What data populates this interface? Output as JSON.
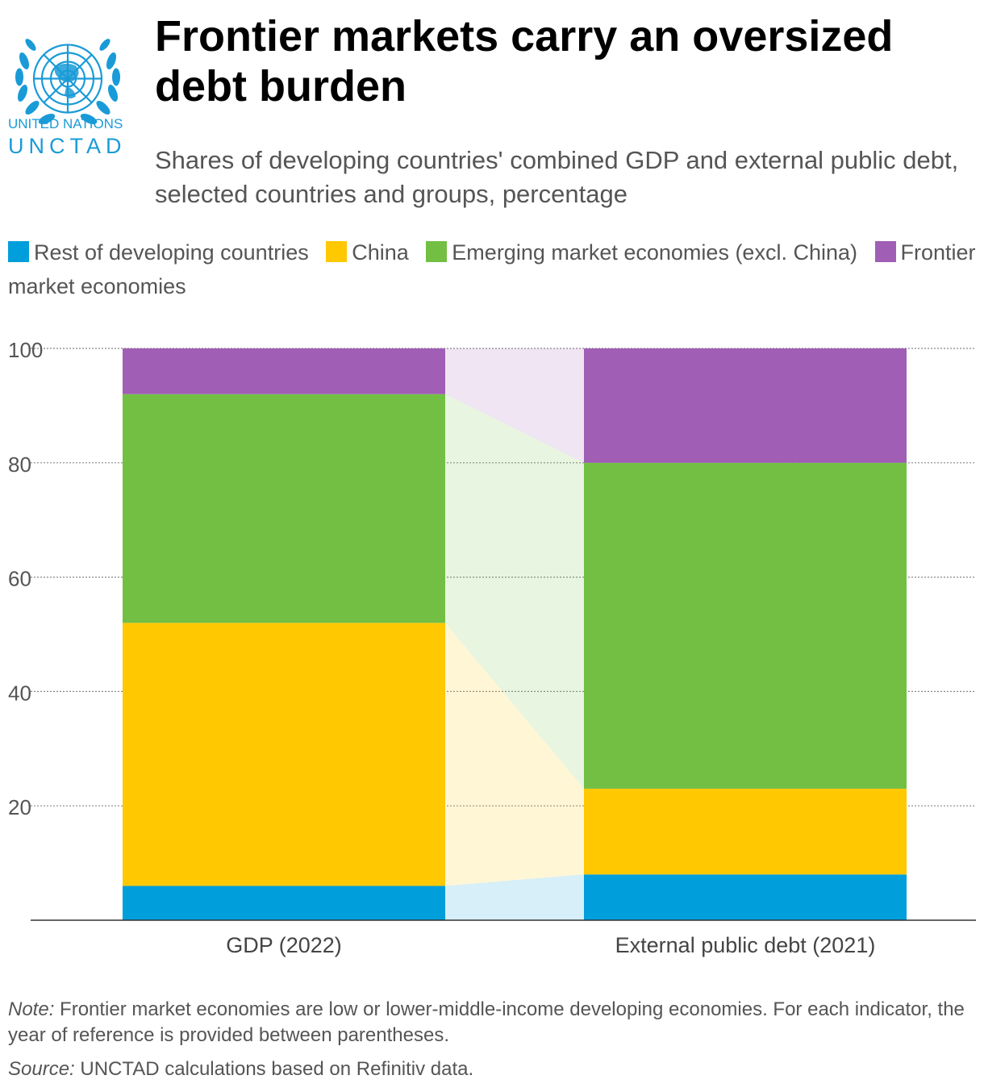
{
  "logo": {
    "line1": "UNITED NATIONS",
    "line2": "UNCTAD",
    "color": "#1a9bd7"
  },
  "header": {
    "title": "Frontier markets carry an oversized debt burden",
    "subtitle": "Shares of developing countries' combined GDP and external public debt, selected countries and groups, percentage"
  },
  "legend": [
    {
      "label": "Rest of developing countries",
      "color": "#009edb"
    },
    {
      "label": "China",
      "color": "#ffc800"
    },
    {
      "label": "Emerging market economies (excl. China)",
      "color": "#72bf44"
    },
    {
      "label": "Frontier market economies",
      "color": "#a05eb5"
    }
  ],
  "chart_data": {
    "type": "bar",
    "stacked": true,
    "categories": [
      "GDP (2022)",
      "External public debt (2021)"
    ],
    "series": [
      {
        "name": "Rest of developing countries",
        "values": [
          6,
          8
        ],
        "color": "#009edb"
      },
      {
        "name": "China",
        "values": [
          46,
          15
        ],
        "color": "#ffc800"
      },
      {
        "name": "Emerging market economies (excl. China)",
        "values": [
          40,
          57
        ],
        "color": "#72bf44"
      },
      {
        "name": "Frontier market economies",
        "values": [
          8,
          20
        ],
        "color": "#a05eb5"
      }
    ],
    "ylim": [
      0,
      100
    ],
    "yticks": [
      20,
      40,
      60,
      80,
      100
    ],
    "grid": true,
    "legend_position": "top"
  },
  "footer": {
    "note_label": "Note:",
    "note_text": " Frontier market economies are low or lower-middle-income developing economies. For each indicator, the year of reference is provided between parentheses.",
    "source_label": "Source:",
    "source_text": " UNCTAD calculations based on Refinitiv data."
  }
}
